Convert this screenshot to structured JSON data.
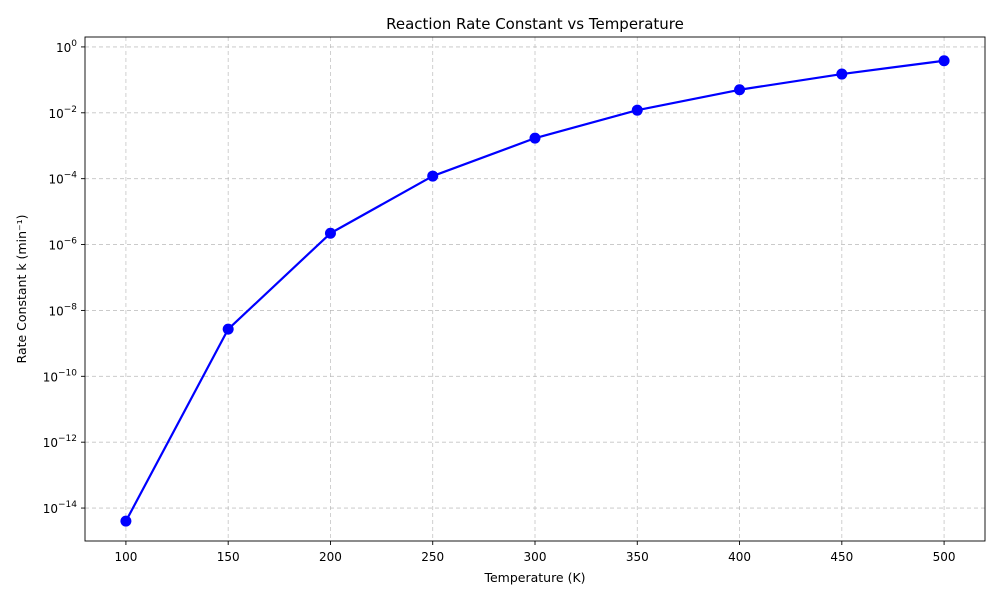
{
  "chart_data": {
    "type": "line",
    "title": "Reaction Rate Constant vs Temperature",
    "xlabel": "Temperature (K)",
    "ylabel": "Rate Constant k (min⁻¹)",
    "yscale": "log",
    "xlim": [
      80,
      520
    ],
    "ylim": [
      1e-15,
      2
    ],
    "xticks": [
      100,
      150,
      200,
      250,
      300,
      350,
      400,
      450,
      500
    ],
    "yticks": [
      {
        "value": 1e-14,
        "base": "10",
        "exp": "−14"
      },
      {
        "value": 1e-12,
        "base": "10",
        "exp": "−12"
      },
      {
        "value": 1e-10,
        "base": "10",
        "exp": "−10"
      },
      {
        "value": 1e-08,
        "base": "10",
        "exp": "−8"
      },
      {
        "value": 1e-06,
        "base": "10",
        "exp": "−6"
      },
      {
        "value": 0.0001,
        "base": "10",
        "exp": "−4"
      },
      {
        "value": 0.01,
        "base": "10",
        "exp": "−2"
      },
      {
        "value": 1,
        "base": "10",
        "exp": "0"
      }
    ],
    "grid": true,
    "series": [
      {
        "color": "#0000ff",
        "marker": "circle",
        "x": [
          100,
          150,
          200,
          250,
          300,
          350,
          400,
          450,
          500
        ],
        "y": [
          4e-15,
          2.7e-09,
          2.2e-06,
          0.00012,
          0.0017,
          0.012,
          0.05,
          0.15,
          0.38
        ]
      }
    ]
  }
}
